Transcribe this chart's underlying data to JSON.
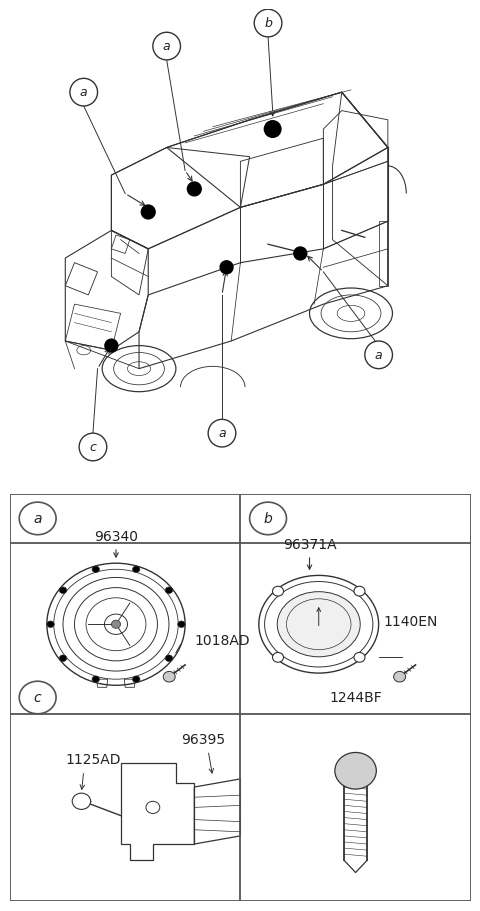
{
  "bg_color": "#ffffff",
  "line_color": "#333333",
  "label_color": "#222222",
  "grid_color": "#555555",
  "part_labels": {
    "speaker_a": "96340",
    "screw_a": "1018AD",
    "speaker_b": "96371A",
    "screw_b": "1140EN",
    "bracket": "1125AD",
    "horn": "96395",
    "screw_c": "1244BF"
  },
  "section_labels": [
    "a",
    "b",
    "c"
  ]
}
